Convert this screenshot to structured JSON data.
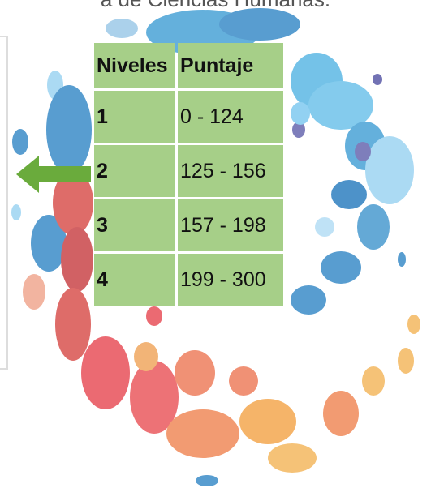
{
  "header": {
    "text": "a de Ciencias Humanas."
  },
  "table": {
    "columns": [
      "Niveles",
      "Puntaje"
    ],
    "rows": [
      [
        "1",
        "0 - 124"
      ],
      [
        "2",
        "125 - 156"
      ],
      [
        "3",
        "157 - 198"
      ],
      [
        "4",
        "199 - 300"
      ]
    ]
  }
}
